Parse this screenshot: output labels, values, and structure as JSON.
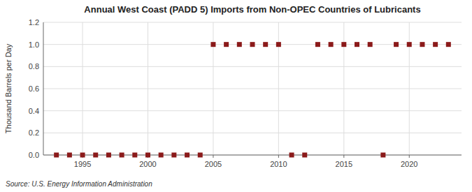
{
  "chart_data": {
    "type": "scatter",
    "title": "Annual West Coast (PADD 5) Imports from Non-OPEC Countries of Lubricants",
    "ylabel": "Thousand Barrels per Day",
    "annotations": [
      "Source: U.S. Energy Information Administration"
    ],
    "x": [
      1993,
      1994,
      1995,
      1996,
      1997,
      1998,
      1999,
      2000,
      2001,
      2002,
      2003,
      2004,
      2005,
      2006,
      2007,
      2008,
      2009,
      2010,
      2011,
      2012,
      2013,
      2014,
      2015,
      2016,
      2017,
      2018,
      2019,
      2020,
      2021,
      2022,
      2023
    ],
    "values": [
      0,
      0,
      0,
      0,
      0,
      0,
      0,
      0,
      0,
      0,
      0,
      0,
      1,
      1,
      1,
      1,
      1,
      1,
      0,
      0,
      1,
      1,
      1,
      1,
      1,
      0,
      1,
      1,
      1,
      1,
      1
    ],
    "color": "#8b1a1a",
    "marker": "square",
    "xlim": [
      1992,
      2024
    ],
    "xticks": [
      1995,
      2000,
      2005,
      2010,
      2015,
      2020
    ],
    "ylim": [
      0,
      1.2
    ],
    "yticks": [
      {
        "value": 0.0,
        "label": "0.0"
      },
      0.2,
      0.4,
      0.6,
      0.8,
      {
        "value": 1.0,
        "label": "1.0"
      },
      1.2
    ],
    "grid": true
  }
}
